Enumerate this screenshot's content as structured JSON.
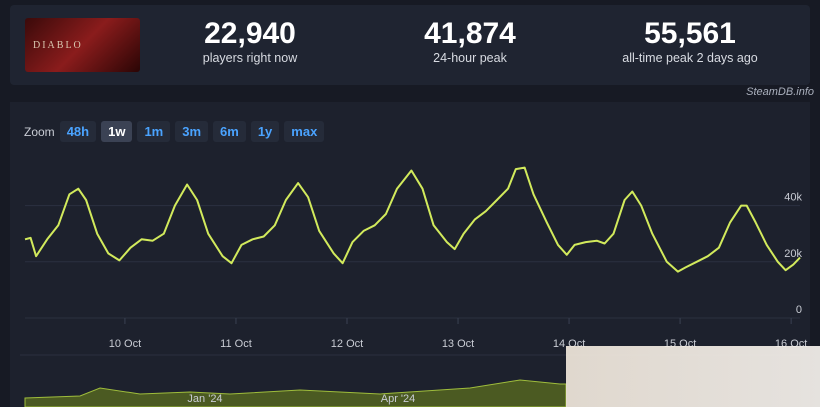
{
  "header": {
    "game_logo": "DIABLO",
    "stats": [
      {
        "value": "22,940",
        "label": "players right now"
      },
      {
        "value": "41,874",
        "label": "24-hour peak"
      },
      {
        "value": "55,561",
        "label": "all-time peak 2 days ago"
      }
    ],
    "credit": "SteamDB.info"
  },
  "zoom": {
    "label": "Zoom",
    "options": [
      "48h",
      "1w",
      "1m",
      "3m",
      "6m",
      "1y",
      "max"
    ],
    "active": "1w"
  },
  "chart_data": {
    "type": "line",
    "color": "#d2ea5c",
    "x": [
      9.1,
      9.15,
      9.2,
      9.3,
      9.4,
      9.5,
      9.58,
      9.65,
      9.75,
      9.85,
      9.95,
      10.05,
      10.15,
      10.25,
      10.35,
      10.45,
      10.56,
      10.65,
      10.75,
      10.88,
      10.96,
      11.05,
      11.15,
      11.25,
      11.35,
      11.45,
      11.56,
      11.65,
      11.75,
      11.88,
      11.96,
      12.05,
      12.15,
      12.25,
      12.35,
      12.45,
      12.58,
      12.68,
      12.78,
      12.9,
      12.97,
      13.05,
      13.15,
      13.25,
      13.35,
      13.45,
      13.52,
      13.6,
      13.68,
      13.8,
      13.9,
      13.98,
      14.05,
      14.15,
      14.25,
      14.32,
      14.4,
      14.5,
      14.57,
      14.65,
      14.75,
      14.88,
      14.98,
      15.05,
      15.15,
      15.25,
      15.35,
      15.45,
      15.55,
      15.6,
      15.68,
      15.78,
      15.88,
      15.95,
      16.02,
      16.08
    ],
    "values": [
      28000,
      28500,
      22000,
      28000,
      33000,
      44000,
      46000,
      42000,
      30000,
      23000,
      20500,
      25000,
      28000,
      27500,
      30000,
      40000,
      47500,
      42000,
      30000,
      22000,
      19500,
      26000,
      28000,
      29000,
      33000,
      42000,
      48000,
      43000,
      31000,
      23000,
      19500,
      27000,
      31000,
      33000,
      37000,
      46000,
      52500,
      46000,
      33000,
      27000,
      24500,
      30000,
      35000,
      38000,
      42000,
      46000,
      53000,
      53500,
      44000,
      34000,
      26000,
      22500,
      26000,
      27000,
      27500,
      26500,
      30000,
      42000,
      45000,
      40000,
      30000,
      20000,
      16500,
      18000,
      20000,
      22000,
      25000,
      34000,
      40000,
      40000,
      34000,
      26000,
      20000,
      17000,
      19000,
      21500
    ],
    "xlim": [
      9.1,
      16.08
    ],
    "xticks": [
      {
        "value": 10,
        "label": "10 Oct"
      },
      {
        "value": 11,
        "label": "11 Oct"
      },
      {
        "value": 12,
        "label": "12 Oct"
      },
      {
        "value": 13,
        "label": "13 Oct"
      },
      {
        "value": 14,
        "label": "14 Oct"
      },
      {
        "value": 15,
        "label": "15 Oct"
      },
      {
        "value": 16,
        "label": "16 Oct"
      }
    ],
    "ylim": [
      0,
      58000
    ],
    "yticks": [
      0,
      {
        "value": 20000,
        "label": "20k"
      },
      {
        "value": 40000,
        "label": "40k"
      }
    ],
    "grid": true
  },
  "navigator": {
    "labels": [
      "Jan '24",
      "Apr '24"
    ]
  }
}
